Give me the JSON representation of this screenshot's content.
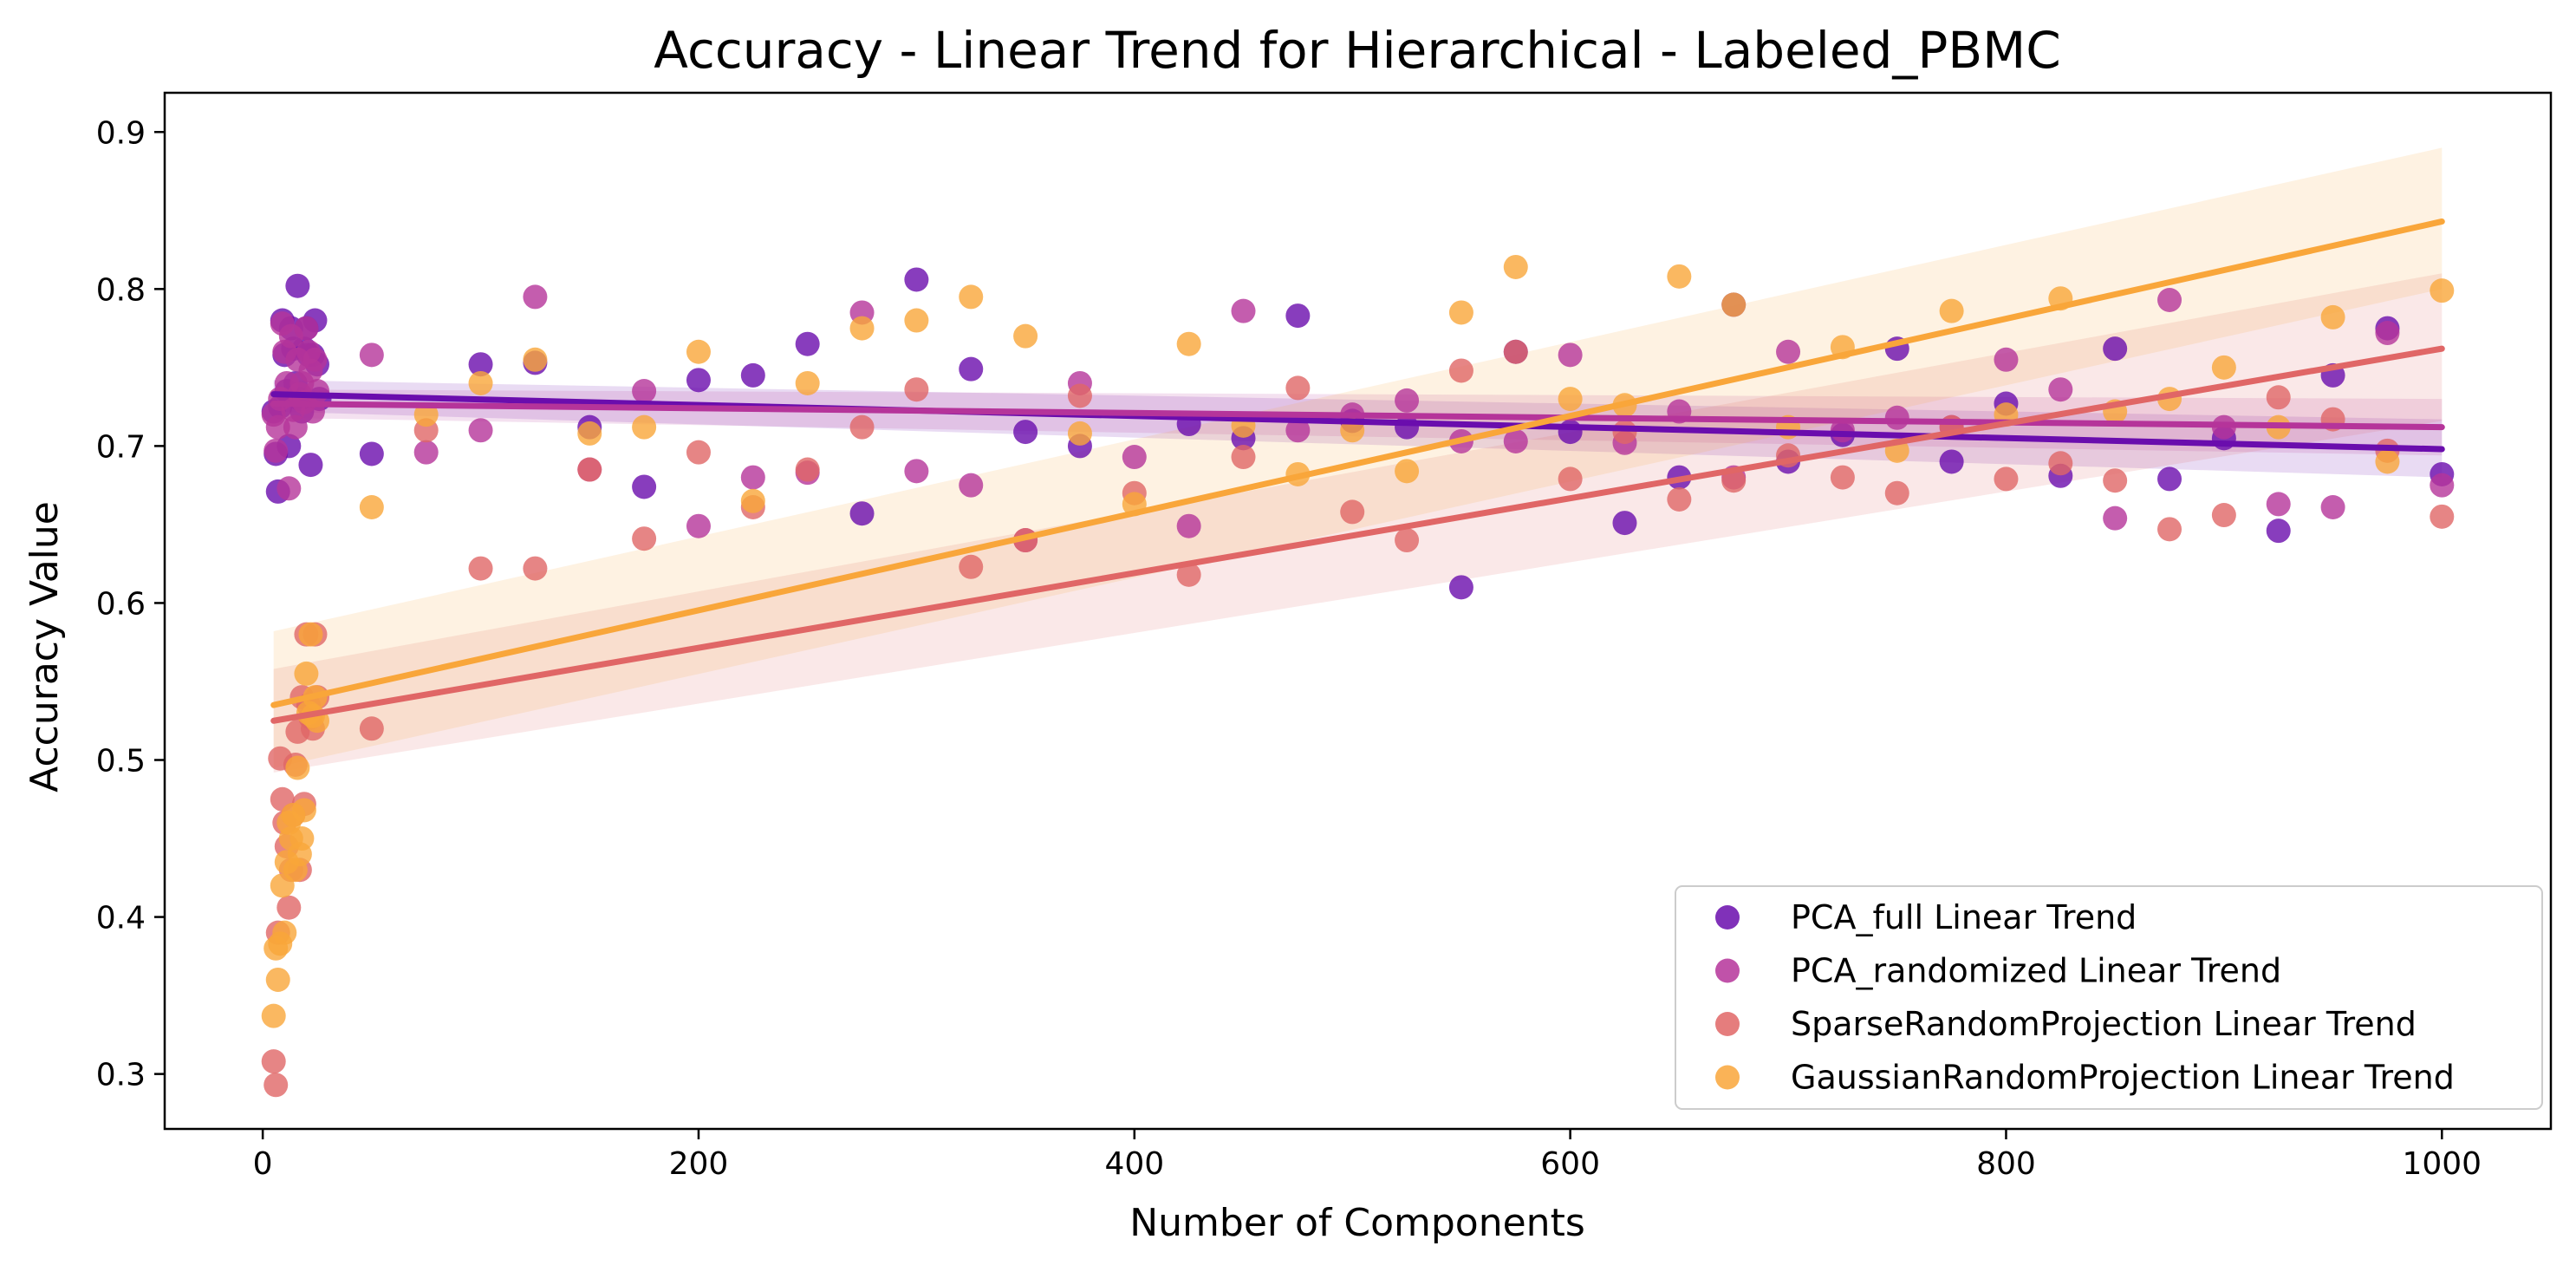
{
  "chart_data": {
    "type": "scatter",
    "title": "Accuracy - Linear Trend for Hierarchical - Labeled_PBMC",
    "xlabel": "Number of Components",
    "ylabel": "Accuracy Value",
    "xlim": [
      -45,
      1050
    ],
    "ylim": [
      0.265,
      0.925
    ],
    "xticks": [
      0,
      200,
      400,
      600,
      800,
      1000
    ],
    "yticks": [
      0.3,
      0.4,
      0.5,
      0.6,
      0.7,
      0.8,
      0.9
    ],
    "grid": false,
    "legend_position": "lower-right",
    "series": [
      {
        "name": "PCA_full Linear Trend",
        "color": "#6a0dad",
        "trend": {
          "x": [
            5,
            1000
          ],
          "y": [
            0.733,
            0.698
          ]
        },
        "band": {
          "upper_start": 0.742,
          "upper_end": 0.717,
          "lower_start": 0.722,
          "lower_end": 0.68
        },
        "points": [
          [
            5,
            0.722
          ],
          [
            6,
            0.695
          ],
          [
            7,
            0.671
          ],
          [
            8,
            0.725
          ],
          [
            9,
            0.78
          ],
          [
            10,
            0.758
          ],
          [
            11,
            0.735
          ],
          [
            12,
            0.7
          ],
          [
            13,
            0.775
          ],
          [
            14,
            0.762
          ],
          [
            15,
            0.74
          ],
          [
            16,
            0.802
          ],
          [
            17,
            0.73
          ],
          [
            18,
            0.722
          ],
          [
            19,
            0.762
          ],
          [
            20,
            0.775
          ],
          [
            21,
            0.758
          ],
          [
            22,
            0.688
          ],
          [
            23,
            0.758
          ],
          [
            24,
            0.78
          ],
          [
            25,
            0.752
          ],
          [
            26,
            0.73
          ],
          [
            50,
            0.695
          ],
          [
            100,
            0.752
          ],
          [
            125,
            0.753
          ],
          [
            150,
            0.712
          ],
          [
            175,
            0.674
          ],
          [
            200,
            0.742
          ],
          [
            225,
            0.745
          ],
          [
            250,
            0.765
          ],
          [
            275,
            0.657
          ],
          [
            300,
            0.806
          ],
          [
            325,
            0.749
          ],
          [
            350,
            0.709
          ],
          [
            375,
            0.7
          ],
          [
            425,
            0.714
          ],
          [
            450,
            0.705
          ],
          [
            475,
            0.783
          ],
          [
            500,
            0.716
          ],
          [
            525,
            0.712
          ],
          [
            550,
            0.61
          ],
          [
            575,
            0.76
          ],
          [
            600,
            0.709
          ],
          [
            625,
            0.651
          ],
          [
            650,
            0.68
          ],
          [
            675,
            0.79
          ],
          [
            700,
            0.69
          ],
          [
            725,
            0.707
          ],
          [
            750,
            0.762
          ],
          [
            775,
            0.69
          ],
          [
            800,
            0.727
          ],
          [
            825,
            0.681
          ],
          [
            850,
            0.762
          ],
          [
            875,
            0.679
          ],
          [
            900,
            0.705
          ],
          [
            925,
            0.646
          ],
          [
            950,
            0.745
          ],
          [
            975,
            0.775
          ],
          [
            1000,
            0.682
          ]
        ]
      },
      {
        "name": "PCA_randomized Linear Trend",
        "color": "#b5349a",
        "trend": {
          "x": [
            5,
            1000
          ],
          "y": [
            0.727,
            0.712
          ]
        },
        "band": {
          "upper_start": 0.736,
          "upper_end": 0.73,
          "lower_start": 0.718,
          "lower_end": 0.694
        },
        "points": [
          [
            5,
            0.72
          ],
          [
            6,
            0.697
          ],
          [
            7,
            0.712
          ],
          [
            8,
            0.73
          ],
          [
            9,
            0.778
          ],
          [
            10,
            0.76
          ],
          [
            11,
            0.74
          ],
          [
            12,
            0.673
          ],
          [
            13,
            0.77
          ],
          [
            14,
            0.723
          ],
          [
            15,
            0.712
          ],
          [
            16,
            0.755
          ],
          [
            17,
            0.733
          ],
          [
            18,
            0.74
          ],
          [
            19,
            0.728
          ],
          [
            20,
            0.775
          ],
          [
            21,
            0.76
          ],
          [
            22,
            0.748
          ],
          [
            23,
            0.722
          ],
          [
            24,
            0.755
          ],
          [
            25,
            0.735
          ],
          [
            50,
            0.758
          ],
          [
            75,
            0.696
          ],
          [
            100,
            0.71
          ],
          [
            125,
            0.795
          ],
          [
            150,
            0.685
          ],
          [
            175,
            0.735
          ],
          [
            200,
            0.649
          ],
          [
            225,
            0.68
          ],
          [
            250,
            0.683
          ],
          [
            275,
            0.785
          ],
          [
            300,
            0.684
          ],
          [
            325,
            0.675
          ],
          [
            350,
            0.64
          ],
          [
            375,
            0.74
          ],
          [
            400,
            0.693
          ],
          [
            425,
            0.649
          ],
          [
            450,
            0.786
          ],
          [
            475,
            0.71
          ],
          [
            500,
            0.72
          ],
          [
            525,
            0.729
          ],
          [
            550,
            0.703
          ],
          [
            575,
            0.703
          ],
          [
            600,
            0.758
          ],
          [
            625,
            0.702
          ],
          [
            650,
            0.722
          ],
          [
            675,
            0.68
          ],
          [
            700,
            0.76
          ],
          [
            725,
            0.71
          ],
          [
            750,
            0.718
          ],
          [
            775,
            0.712
          ],
          [
            800,
            0.755
          ],
          [
            825,
            0.736
          ],
          [
            850,
            0.654
          ],
          [
            875,
            0.793
          ],
          [
            900,
            0.712
          ],
          [
            925,
            0.663
          ],
          [
            950,
            0.661
          ],
          [
            975,
            0.772
          ],
          [
            1000,
            0.675
          ]
        ]
      },
      {
        "name": "SparseRandomProjection Linear Trend",
        "color": "#e06666",
        "trend": {
          "x": [
            5,
            1000
          ],
          "y": [
            0.525,
            0.762
          ]
        },
        "band": {
          "upper_start": 0.558,
          "upper_end": 0.81,
          "lower_start": 0.492,
          "lower_end": 0.716
        },
        "points": [
          [
            5,
            0.308
          ],
          [
            6,
            0.293
          ],
          [
            7,
            0.39
          ],
          [
            8,
            0.501
          ],
          [
            9,
            0.475
          ],
          [
            10,
            0.46
          ],
          [
            11,
            0.445
          ],
          [
            12,
            0.406
          ],
          [
            13,
            0.43
          ],
          [
            14,
            0.465
          ],
          [
            15,
            0.497
          ],
          [
            16,
            0.518
          ],
          [
            17,
            0.43
          ],
          [
            18,
            0.54
          ],
          [
            19,
            0.472
          ],
          [
            20,
            0.58
          ],
          [
            21,
            0.535
          ],
          [
            22,
            0.527
          ],
          [
            23,
            0.52
          ],
          [
            24,
            0.58
          ],
          [
            25,
            0.54
          ],
          [
            50,
            0.52
          ],
          [
            75,
            0.71
          ],
          [
            100,
            0.622
          ],
          [
            125,
            0.622
          ],
          [
            150,
            0.685
          ],
          [
            175,
            0.641
          ],
          [
            200,
            0.696
          ],
          [
            225,
            0.661
          ],
          [
            250,
            0.685
          ],
          [
            275,
            0.712
          ],
          [
            300,
            0.736
          ],
          [
            325,
            0.623
          ],
          [
            350,
            0.64
          ],
          [
            375,
            0.732
          ],
          [
            400,
            0.67
          ],
          [
            425,
            0.618
          ],
          [
            450,
            0.693
          ],
          [
            475,
            0.737
          ],
          [
            500,
            0.658
          ],
          [
            525,
            0.64
          ],
          [
            550,
            0.748
          ],
          [
            575,
            0.76
          ],
          [
            600,
            0.679
          ],
          [
            625,
            0.709
          ],
          [
            650,
            0.666
          ],
          [
            675,
            0.678
          ],
          [
            700,
            0.694
          ],
          [
            725,
            0.68
          ],
          [
            750,
            0.67
          ],
          [
            775,
            0.712
          ],
          [
            800,
            0.679
          ],
          [
            825,
            0.689
          ],
          [
            850,
            0.678
          ],
          [
            875,
            0.647
          ],
          [
            900,
            0.656
          ],
          [
            925,
            0.731
          ],
          [
            950,
            0.717
          ],
          [
            975,
            0.697
          ],
          [
            1000,
            0.655
          ]
        ]
      },
      {
        "name": "GaussianRandomProjection Linear Trend",
        "color": "#f9a63a",
        "trend": {
          "x": [
            5,
            1000
          ],
          "y": [
            0.535,
            0.843
          ]
        },
        "band": {
          "upper_start": 0.582,
          "upper_end": 0.89,
          "lower_start": 0.495,
          "lower_end": 0.8
        },
        "points": [
          [
            5,
            0.337
          ],
          [
            6,
            0.38
          ],
          [
            7,
            0.36
          ],
          [
            8,
            0.383
          ],
          [
            9,
            0.42
          ],
          [
            10,
            0.39
          ],
          [
            11,
            0.435
          ],
          [
            12,
            0.46
          ],
          [
            13,
            0.45
          ],
          [
            14,
            0.465
          ],
          [
            15,
            0.43
          ],
          [
            16,
            0.495
          ],
          [
            17,
            0.44
          ],
          [
            18,
            0.45
          ],
          [
            19,
            0.468
          ],
          [
            20,
            0.555
          ],
          [
            21,
            0.53
          ],
          [
            22,
            0.58
          ],
          [
            23,
            0.528
          ],
          [
            24,
            0.54
          ],
          [
            25,
            0.525
          ],
          [
            50,
            0.661
          ],
          [
            75,
            0.72
          ],
          [
            100,
            0.74
          ],
          [
            125,
            0.755
          ],
          [
            150,
            0.708
          ],
          [
            175,
            0.712
          ],
          [
            200,
            0.76
          ],
          [
            225,
            0.665
          ],
          [
            250,
            0.74
          ],
          [
            275,
            0.775
          ],
          [
            300,
            0.78
          ],
          [
            325,
            0.795
          ],
          [
            350,
            0.77
          ],
          [
            375,
            0.708
          ],
          [
            400,
            0.663
          ],
          [
            425,
            0.765
          ],
          [
            450,
            0.713
          ],
          [
            475,
            0.682
          ],
          [
            500,
            0.71
          ],
          [
            525,
            0.684
          ],
          [
            550,
            0.785
          ],
          [
            575,
            0.814
          ],
          [
            600,
            0.73
          ],
          [
            625,
            0.726
          ],
          [
            650,
            0.808
          ],
          [
            675,
            0.79
          ],
          [
            700,
            0.712
          ],
          [
            725,
            0.763
          ],
          [
            750,
            0.697
          ],
          [
            775,
            0.786
          ],
          [
            800,
            0.72
          ],
          [
            825,
            0.794
          ],
          [
            850,
            0.722
          ],
          [
            875,
            0.73
          ],
          [
            900,
            0.75
          ],
          [
            925,
            0.712
          ],
          [
            950,
            0.782
          ],
          [
            975,
            0.69
          ],
          [
            1000,
            0.799
          ]
        ]
      }
    ]
  }
}
